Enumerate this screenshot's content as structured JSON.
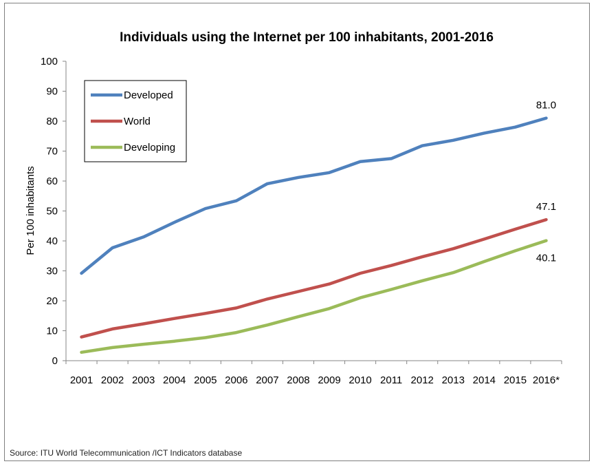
{
  "chart_data": {
    "type": "line",
    "title": "Individuals using the Internet per 100 inhabitants, 2001-2016",
    "ylabel": "Per 100 inhabitants",
    "xlabel": "",
    "categories": [
      "2001",
      "2002",
      "2003",
      "2004",
      "2005",
      "2006",
      "2007",
      "2008",
      "2009",
      "2010",
      "2011",
      "2012",
      "2013",
      "2014",
      "2015",
      "2016*"
    ],
    "ylim": [
      0,
      100
    ],
    "yticks": [
      "0",
      "10",
      "20",
      "30",
      "40",
      "50",
      "60",
      "70",
      "80",
      "90",
      "100"
    ],
    "grid": false,
    "legend": "top-left",
    "series": [
      {
        "name": "Developed",
        "color": "#4f81bd",
        "values": [
          29.2,
          37.7,
          41.3,
          46.2,
          50.8,
          53.4,
          59.1,
          61.2,
          62.8,
          66.5,
          67.5,
          71.8,
          73.6,
          76.0,
          78.0,
          81.0
        ]
      },
      {
        "name": "World",
        "color": "#c0504d",
        "values": [
          7.9,
          10.6,
          12.3,
          14.1,
          15.8,
          17.6,
          20.6,
          23.1,
          25.6,
          29.2,
          31.8,
          34.7,
          37.4,
          40.6,
          43.9,
          47.1
        ]
      },
      {
        "name": "Developing",
        "color": "#9bbb59",
        "values": [
          2.8,
          4.4,
          5.5,
          6.5,
          7.7,
          9.4,
          11.9,
          14.7,
          17.4,
          21.0,
          23.8,
          26.7,
          29.4,
          33.1,
          36.7,
          40.1
        ]
      }
    ],
    "end_labels": [
      "81.0",
      "47.1",
      "40.1"
    ]
  },
  "footer": {
    "source": "Source:  ITU World Telecommunication /ICT Indicators database"
  }
}
